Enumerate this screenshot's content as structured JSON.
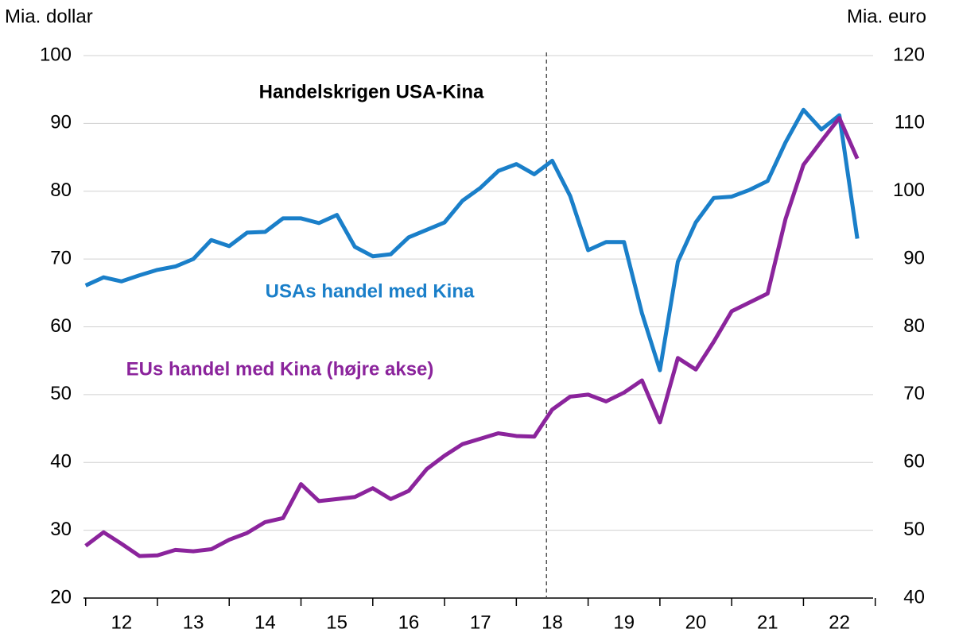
{
  "chart_data": {
    "type": "line",
    "title": "Handelskrigen USA-Kina",
    "y_label": "Mia. dollar",
    "y2_label": "Mia. euro",
    "x": [
      12,
      12.25,
      12.5,
      12.75,
      13,
      13.25,
      13.5,
      13.75,
      14,
      14.25,
      14.5,
      14.75,
      15,
      15.25,
      15.5,
      15.75,
      16,
      16.25,
      16.5,
      16.75,
      17,
      17.25,
      17.5,
      17.75,
      18,
      18.25,
      18.5,
      18.75,
      19,
      19.25,
      19.5,
      19.75,
      20,
      20.25,
      20.5,
      20.75,
      21,
      21.25,
      21.5,
      21.75,
      22,
      22.25,
      22.5,
      22.75
    ],
    "series": [
      {
        "name": "USAs handel med Kina",
        "color": "#1a7fc9",
        "axis": "y",
        "values": [
          66.1,
          67.3,
          66.7,
          67.6,
          68.4,
          68.9,
          70.0,
          72.8,
          71.9,
          73.9,
          74.0,
          76.0,
          76.0,
          75.3,
          76.5,
          71.8,
          70.4,
          70.7,
          73.2,
          74.3,
          75.4,
          78.6,
          80.5,
          83.0,
          84.0,
          82.5,
          84.5,
          79.3,
          71.3,
          72.5,
          72.5,
          62.0,
          53.6,
          69.6,
          75.4,
          79.0,
          79.2,
          80.2,
          81.5,
          87.2,
          92.0,
          89.1,
          91.2,
          73.0
        ]
      },
      {
        "name": "EUs handel med Kina (højre akse)",
        "color": "#8b249c",
        "axis": "y2",
        "values": [
          47.7,
          49.7,
          48.0,
          46.2,
          46.3,
          47.1,
          46.9,
          47.2,
          48.6,
          49.6,
          51.2,
          51.8,
          56.8,
          54.3,
          54.6,
          54.9,
          56.2,
          54.6,
          55.8,
          59.0,
          61.0,
          62.7,
          63.5,
          64.3,
          63.9,
          63.8,
          67.8,
          69.7,
          70.0,
          69.0,
          70.3,
          72.1,
          65.9,
          75.4,
          73.7,
          77.8,
          82.3,
          83.6,
          84.9,
          95.9,
          103.9,
          107.4,
          110.8,
          104.8
        ]
      }
    ],
    "xlim": [
      11.97,
      22.97
    ],
    "xticks": [
      {
        "value": 12.5,
        "label": "12"
      },
      {
        "value": 13.5,
        "label": "13"
      },
      {
        "value": 14.5,
        "label": "14"
      },
      {
        "value": 15.5,
        "label": "15"
      },
      {
        "value": 16.5,
        "label": "16"
      },
      {
        "value": 17.5,
        "label": "17"
      },
      {
        "value": 18.5,
        "label": "18"
      },
      {
        "value": 19.5,
        "label": "19"
      },
      {
        "value": 20.5,
        "label": "20"
      },
      {
        "value": 21.5,
        "label": "21"
      },
      {
        "value": 22.5,
        "label": "22"
      }
    ],
    "xtick_marks": [
      12,
      13,
      14,
      15,
      16,
      17,
      18,
      19,
      20,
      21,
      22,
      23
    ],
    "event_x": 18.42,
    "ylim": [
      20,
      100
    ],
    "yticks": [
      20,
      30,
      40,
      50,
      60,
      70,
      80,
      90,
      100
    ],
    "y2lim": [
      40,
      120
    ],
    "y2ticks": [
      40,
      50,
      60,
      70,
      80,
      90,
      100,
      110,
      120
    ],
    "grid": true
  }
}
